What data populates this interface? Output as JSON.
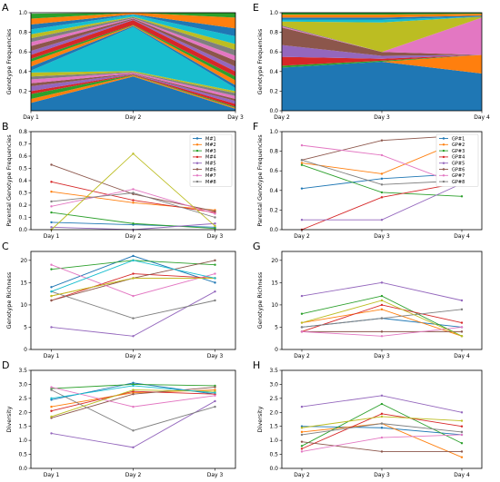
{
  "palette": [
    "#1f77b4",
    "#ff7f0e",
    "#2ca02c",
    "#d62728",
    "#9467bd",
    "#8c564b",
    "#e377c2",
    "#7f7f7f",
    "#bcbd22",
    "#17becf"
  ],
  "chart_data": [
    {
      "panel": "A",
      "type": "area",
      "stacked": true,
      "x": [
        "Day 1",
        "Day 2",
        "Day 3"
      ],
      "ylabel": "Genotype Frequencies",
      "ylim": [
        0,
        1.0
      ],
      "yticks": [
        0.2,
        0.4,
        0.6,
        0.8,
        1.0
      ],
      "series": [
        {
          "values": [
            0.08,
            0.35,
            0.02
          ]
        },
        {
          "values": [
            0.04,
            0.01,
            0.01
          ]
        },
        {
          "values": [
            0.05,
            0.005,
            0.01
          ]
        },
        {
          "values": [
            0.03,
            0.005,
            0.03
          ]
        },
        {
          "values": [
            0.05,
            0.005,
            0.03
          ]
        },
        {
          "values": [
            0.03,
            0.005,
            0.02
          ]
        },
        {
          "values": [
            0.04,
            0.01,
            0.03
          ]
        },
        {
          "values": [
            0.03,
            0.005,
            0.03
          ]
        },
        {
          "values": [
            0.04,
            0.01,
            0.02
          ]
        },
        {
          "values": [
            0.02,
            0.45,
            0.03
          ]
        },
        {
          "values": [
            0.04,
            0.01,
            0.03
          ]
        },
        {
          "values": [
            0.05,
            0.005,
            0.05
          ]
        },
        {
          "values": [
            0.03,
            0.005,
            0.04
          ]
        },
        {
          "values": [
            0.04,
            0.05,
            0.05
          ]
        },
        {
          "values": [
            0.04,
            0.005,
            0.05
          ]
        },
        {
          "values": [
            0.05,
            0.01,
            0.06
          ]
        },
        {
          "values": [
            0.04,
            0.005,
            0.05
          ]
        },
        {
          "values": [
            0.04,
            0.01,
            0.06
          ]
        },
        {
          "values": [
            0.04,
            0.005,
            0.06
          ]
        },
        {
          "values": [
            0.05,
            0.02,
            0.08
          ]
        },
        {
          "values": [
            0.05,
            0.005,
            0.08
          ]
        },
        {
          "values": [
            0.06,
            0.02,
            0.11
          ]
        },
        {
          "values": [
            0.05,
            0.015,
            0.09
          ]
        }
      ]
    },
    {
      "panel": "E",
      "type": "area",
      "stacked": true,
      "x": [
        "Day 2",
        "Day 3",
        "Day 4"
      ],
      "ylabel": "Genotype Frequencies",
      "ylim": [
        0,
        1.0
      ],
      "yticks": [
        0.0,
        0.2,
        0.4,
        0.6,
        0.8,
        1.0
      ],
      "series": [
        {
          "values": [
            0.44,
            0.5,
            0.38
          ]
        },
        {
          "values": [
            0.0,
            0.0,
            0.19
          ]
        },
        {
          "values": [
            0.02,
            0.01,
            0.0
          ]
        },
        {
          "values": [
            0.09,
            0.02,
            0.0
          ]
        },
        {
          "values": [
            0.12,
            0.03,
            0.0
          ]
        },
        {
          "values": [
            0.18,
            0.04,
            0.0
          ]
        },
        {
          "values": [
            0.01,
            0.0,
            0.38
          ]
        },
        {
          "values": [
            0.01,
            0.0,
            0.0
          ]
        },
        {
          "values": [
            0.04,
            0.3,
            0.01
          ]
        },
        {
          "values": [
            0.02,
            0.03,
            0.0
          ]
        },
        {
          "values": [
            0.02,
            0.02,
            0.01
          ]
        },
        {
          "values": [
            0.03,
            0.03,
            0.02
          ]
        },
        {
          "values": [
            0.02,
            0.02,
            0.01
          ]
        }
      ]
    },
    {
      "panel": "B",
      "type": "line",
      "x": [
        "Day 1",
        "Day 2",
        "Day 3"
      ],
      "ylabel": "Parental Genotype Frequencies",
      "ylim": [
        0,
        0.8
      ],
      "yticks": [
        0.0,
        0.1,
        0.2,
        0.3,
        0.4,
        0.5,
        0.6,
        0.7,
        0.8
      ],
      "legend_position": "top-right",
      "series": [
        {
          "name": "M#1",
          "values": [
            0.06,
            0.04,
            0.02
          ]
        },
        {
          "name": "M#2",
          "values": [
            0.31,
            0.22,
            0.16
          ]
        },
        {
          "name": "M#3",
          "values": [
            0.14,
            0.05,
            0.01
          ]
        },
        {
          "name": "M#4",
          "values": [
            0.39,
            0.24,
            0.14
          ]
        },
        {
          "name": "M#5",
          "values": [
            0.02,
            0.0,
            0.05
          ]
        },
        {
          "name": "M#6",
          "values": [
            0.53,
            0.29,
            0.15
          ]
        },
        {
          "name": "M#7",
          "values": [
            0.19,
            0.33,
            0.13
          ]
        },
        {
          "name": "M#8",
          "values": [
            0.23,
            0.3,
            0.1
          ]
        },
        {
          "values": [
            0.0,
            0.62,
            0.03
          ]
        }
      ]
    },
    {
      "panel": "F",
      "type": "line",
      "x": [
        "Day 2",
        "Day 3",
        "Day 4"
      ],
      "ylabel": "Parental Genotype Frequencies",
      "ylim": [
        0,
        1.0
      ],
      "yticks": [
        0.0,
        0.2,
        0.4,
        0.6,
        0.8,
        1.0
      ],
      "legend_position": "top-right",
      "series": [
        {
          "name": "GP#1",
          "values": [
            0.42,
            0.52,
            0.57
          ]
        },
        {
          "name": "GP#2",
          "values": [
            0.68,
            0.57,
            0.91
          ]
        },
        {
          "name": "GP#3",
          "values": [
            0.66,
            0.38,
            0.34
          ]
        },
        {
          "name": "GP#4",
          "values": [
            0.0,
            0.33,
            0.48
          ]
        },
        {
          "name": "GP#5",
          "values": [
            0.1,
            0.1,
            0.47
          ]
        },
        {
          "name": "GP#6",
          "values": [
            0.71,
            0.91,
            0.96
          ]
        },
        {
          "name": "GP#7",
          "values": [
            0.86,
            0.76,
            0.45
          ]
        },
        {
          "name": "GP#8",
          "values": [
            0.71,
            0.46,
            0.5
          ]
        }
      ]
    },
    {
      "panel": "C",
      "type": "line",
      "x": [
        "Day 1",
        "Day 2",
        "Day 3"
      ],
      "ylabel": "Genotype Richness",
      "ylim": [
        0,
        22
      ],
      "yticks": [
        0,
        5,
        10,
        15,
        20
      ],
      "series": [
        {
          "values": [
            14,
            21,
            15
          ]
        },
        {
          "values": [
            12,
            16,
            16
          ]
        },
        {
          "values": [
            18,
            20,
            19
          ]
        },
        {
          "values": [
            11,
            17,
            16
          ]
        },
        {
          "values": [
            5,
            3,
            13
          ]
        },
        {
          "values": [
            11,
            16,
            20
          ]
        },
        {
          "values": [
            19,
            12,
            17
          ]
        },
        {
          "values": [
            13,
            7,
            11
          ]
        },
        {
          "values": [
            12,
            16,
            16
          ]
        },
        {
          "values": [
            13,
            20,
            16
          ]
        }
      ]
    },
    {
      "panel": "G",
      "type": "line",
      "x": [
        "Day 2",
        "Day 3",
        "Day 4"
      ],
      "ylabel": "Genotype Richness",
      "ylim": [
        0,
        22
      ],
      "yticks": [
        0,
        5,
        10,
        15,
        20
      ],
      "series": [
        {
          "values": [
            5,
            7,
            5
          ]
        },
        {
          "values": [
            6,
            9,
            3
          ]
        },
        {
          "values": [
            8,
            12,
            3
          ]
        },
        {
          "values": [
            4,
            10,
            6
          ]
        },
        {
          "values": [
            12,
            15,
            11
          ]
        },
        {
          "values": [
            4,
            4,
            4
          ]
        },
        {
          "values": [
            4,
            3,
            5
          ]
        },
        {
          "values": [
            5,
            7,
            9
          ]
        },
        {
          "values": [
            6,
            11,
            3
          ]
        }
      ]
    },
    {
      "panel": "D",
      "type": "line",
      "x": [
        "Day 1",
        "Day 2",
        "Day 3"
      ],
      "ylabel": "Diversity",
      "ylim": [
        0,
        3.5
      ],
      "yticks": [
        0.0,
        0.5,
        1.0,
        1.5,
        2.0,
        2.5,
        3.0,
        3.5
      ],
      "series": [
        {
          "values": [
            2.45,
            3.05,
            2.65
          ]
        },
        {
          "values": [
            2.2,
            2.7,
            2.8
          ]
        },
        {
          "values": [
            2.85,
            3.0,
            2.95
          ]
        },
        {
          "values": [
            2.05,
            2.75,
            2.65
          ]
        },
        {
          "values": [
            1.25,
            0.75,
            2.4
          ]
        },
        {
          "values": [
            1.8,
            2.65,
            2.9
          ]
        },
        {
          "values": [
            2.9,
            2.2,
            2.6
          ]
        },
        {
          "values": [
            2.8,
            1.35,
            2.2
          ]
        },
        {
          "values": [
            1.85,
            2.8,
            2.75
          ]
        },
        {
          "values": [
            2.5,
            2.95,
            2.7
          ]
        }
      ]
    },
    {
      "panel": "H",
      "type": "line",
      "x": [
        "Day 2",
        "Day 3",
        "Day 4"
      ],
      "ylabel": "Diversity",
      "ylim": [
        0,
        3.5
      ],
      "yticks": [
        0.0,
        0.5,
        1.0,
        1.5,
        2.0,
        2.5,
        3.0,
        3.5
      ],
      "series": [
        {
          "values": [
            1.5,
            1.45,
            1.2
          ]
        },
        {
          "values": [
            1.3,
            1.6,
            0.4
          ]
        },
        {
          "values": [
            0.8,
            2.3,
            0.9
          ]
        },
        {
          "values": [
            0.7,
            1.95,
            1.5
          ]
        },
        {
          "values": [
            2.2,
            2.6,
            2.0
          ]
        },
        {
          "values": [
            0.95,
            0.6,
            0.6
          ]
        },
        {
          "values": [
            0.6,
            1.1,
            1.2
          ]
        },
        {
          "values": [
            1.2,
            1.6,
            1.3
          ]
        },
        {
          "values": [
            1.45,
            1.85,
            1.7
          ]
        }
      ]
    }
  ]
}
